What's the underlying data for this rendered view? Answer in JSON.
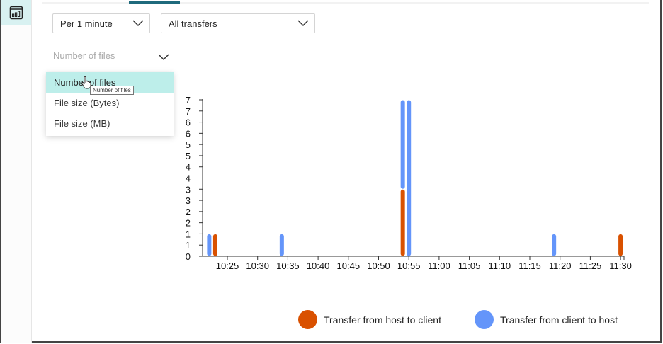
{
  "sidebar": {
    "active_icon": "chart-window-icon"
  },
  "filters": {
    "interval": {
      "value": "Per 1 minute"
    },
    "transfer_type": {
      "value": "All transfers"
    },
    "metric": {
      "placeholder": "Number of files"
    }
  },
  "metric_menu": {
    "items": [
      {
        "label": "Number of files",
        "selected": true
      },
      {
        "label": "File size (Bytes)",
        "selected": false
      },
      {
        "label": "File size (MB)",
        "selected": false
      }
    ],
    "tooltip": "Number of files"
  },
  "colors": {
    "host_to_client": "#d95100",
    "client_to_host": "#6495fa",
    "accent": "#bdeeea"
  },
  "chart_data": {
    "type": "bar",
    "title": "",
    "xlabel": "",
    "ylabel": "Number of files",
    "ylim": [
      0,
      7
    ],
    "y_tick_labels": [
      "0",
      "1",
      "1",
      "2",
      "2",
      "3",
      "3",
      "4",
      "4",
      "5",
      "5",
      "6",
      "6",
      "7",
      "7"
    ],
    "x_tick_labels": [
      "10:25",
      "10:30",
      "10:35",
      "10:40",
      "10:45",
      "10:50",
      "10:55",
      "11:00",
      "11:05",
      "11:10",
      "11:15",
      "11:20",
      "11:25",
      "11:30"
    ],
    "stacked": true,
    "series": [
      {
        "name": "Transfer from host to client",
        "color": "#d95100",
        "points": [
          {
            "x": "10:23",
            "y": 1
          },
          {
            "x": "10:54",
            "y": 3
          },
          {
            "x": "11:30",
            "y": 1
          }
        ]
      },
      {
        "name": "Transfer from client to host",
        "color": "#6495fa",
        "points": [
          {
            "x": "10:22",
            "y": 1
          },
          {
            "x": "10:34",
            "y": 1
          },
          {
            "x": "10:54",
            "y": 4
          },
          {
            "x": "10:55",
            "y": 7
          },
          {
            "x": "11:19",
            "y": 1
          }
        ]
      }
    ],
    "legend_position": "bottom",
    "grid": false
  },
  "legend": {
    "items": [
      {
        "label": "Transfer from host to client"
      },
      {
        "label": "Transfer from client to host"
      }
    ]
  }
}
